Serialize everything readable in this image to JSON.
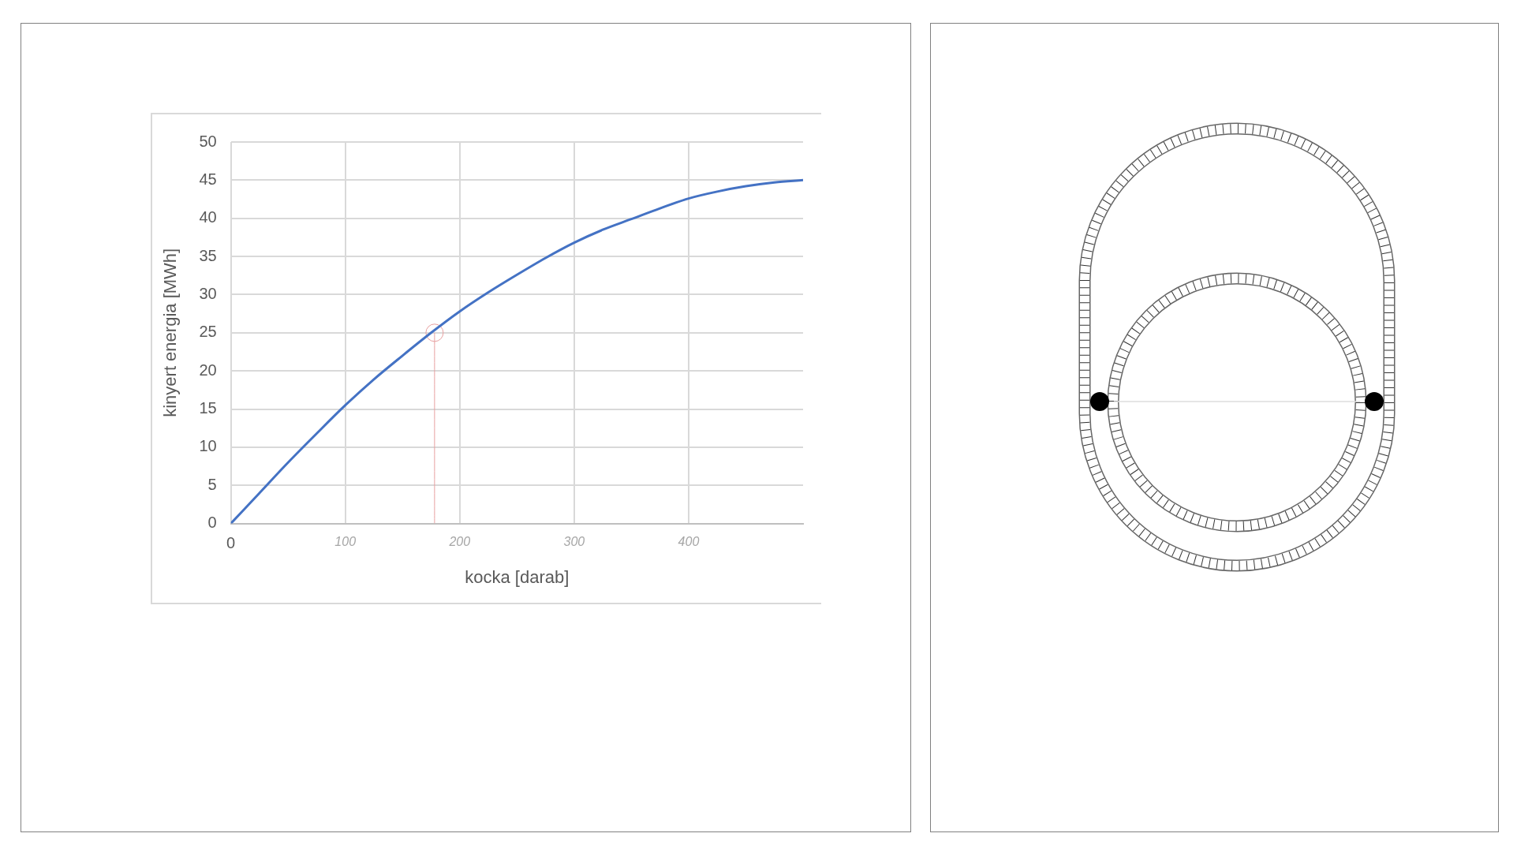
{
  "chart_data": {
    "type": "line",
    "xlabel": "kocka [darab]",
    "ylabel": "kinyert energia [MWh]",
    "xlim": [
      0,
      500
    ],
    "xticks": [
      0,
      100,
      200,
      300,
      400
    ],
    "ylim": [
      0,
      50
    ],
    "yticks": [
      0,
      5,
      10,
      15,
      20,
      25,
      30,
      35,
      40,
      45,
      50
    ],
    "grid": true,
    "series": [
      {
        "color": "#4472c4",
        "marker": "none",
        "x": [
          0,
          25,
          50,
          75,
          100,
          125,
          150,
          175,
          200,
          225,
          250,
          275,
          300,
          325,
          350,
          375,
          400,
          425,
          450,
          475,
          500
        ],
        "values": [
          0,
          4.0,
          8.0,
          11.8,
          15.5,
          18.9,
          22.0,
          25.0,
          27.8,
          30.3,
          32.6,
          34.8,
          36.8,
          38.5,
          39.9,
          41.3,
          42.6,
          43.5,
          44.2,
          44.7,
          45.0
        ]
      },
      {
        "type": "scatter",
        "color": "#e8a0a0",
        "marker": "circle",
        "x": [
          178
        ],
        "values": [
          25
        ]
      },
      {
        "type": "line",
        "color": "#e8a0a0",
        "marker": "none",
        "x": [
          178,
          178
        ],
        "values": [
          0,
          25
        ]
      }
    ]
  }
}
